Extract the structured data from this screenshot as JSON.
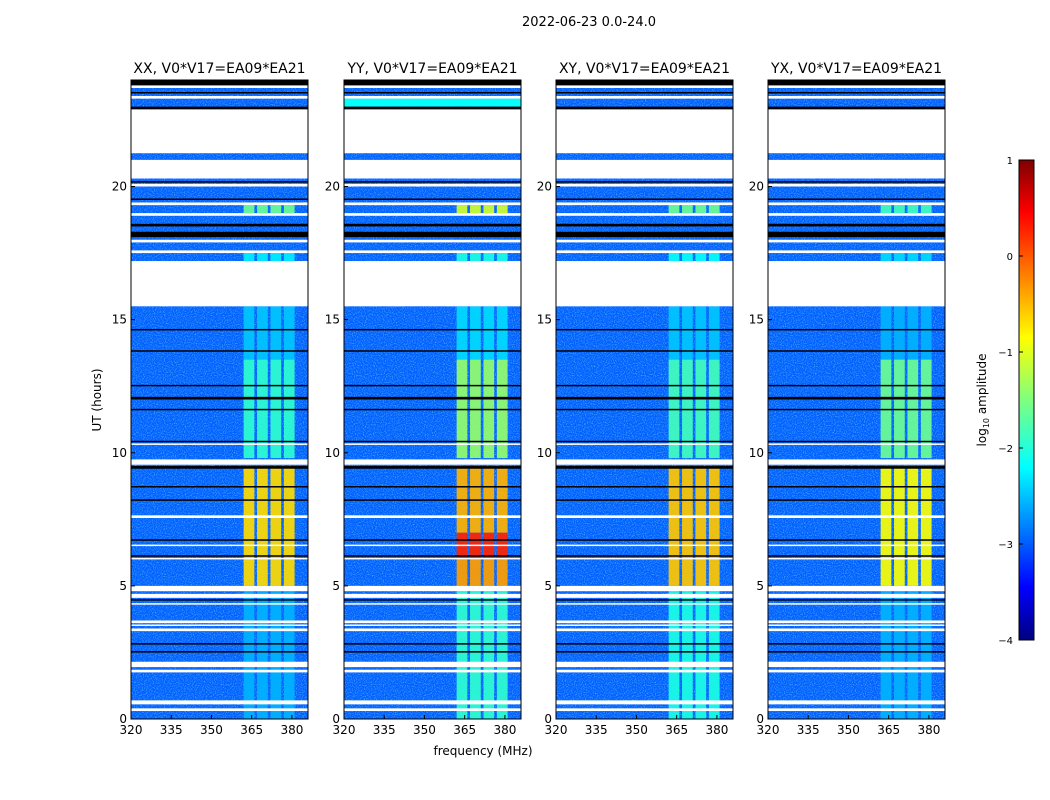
{
  "chart_data": {
    "type": "heatmap",
    "title": "2022-06-23 0.0-24.0",
    "xlabel": "frequency (MHz)",
    "ylabel": "UT (hours)",
    "xlim": [
      320,
      386
    ],
    "ylim": [
      0,
      24
    ],
    "xticks": [
      "320",
      "335",
      "350",
      "365",
      "380"
    ],
    "yticks": [
      "0",
      "5",
      "10",
      "15",
      "20"
    ],
    "colorbar": {
      "label_main": "log",
      "label_sub": "10",
      "label_rest": " amplitude",
      "range": [
        -4,
        1
      ],
      "ticks": [
        "1",
        "0",
        "−1",
        "−2",
        "−3",
        "−4"
      ],
      "colormap": "jet"
    },
    "background_level": -2.9,
    "flagged_hours": [
      [
        0.3,
        0.4
      ],
      [
        0.55,
        0.7
      ],
      [
        1.75,
        1.85
      ],
      [
        1.95,
        2.15
      ],
      [
        3.3,
        3.4
      ],
      [
        3.5,
        3.55
      ],
      [
        3.6,
        3.7
      ],
      [
        4.3,
        4.35
      ],
      [
        4.55,
        4.7
      ],
      [
        4.8,
        5.0
      ],
      [
        6.0,
        6.05
      ],
      [
        6.5,
        6.55
      ],
      [
        7.55,
        7.65
      ],
      [
        9.55,
        9.75
      ],
      [
        10.3,
        10.35
      ],
      [
        15.5,
        17.2
      ],
      [
        17.5,
        17.6
      ],
      [
        17.9,
        18.0
      ],
      [
        18.9,
        19.0
      ],
      [
        19.3,
        19.4
      ],
      [
        20.0,
        20.1
      ],
      [
        20.3,
        21.0
      ],
      [
        21.25,
        22.9
      ],
      [
        23.3,
        23.4
      ],
      [
        23.7,
        23.8
      ]
    ],
    "blank_hours": [
      [
        2.5,
        2.55
      ],
      [
        2.8,
        2.85
      ],
      [
        4.45,
        4.5
      ],
      [
        6.1,
        6.15
      ],
      [
        6.7,
        6.75
      ],
      [
        8.2,
        8.25
      ],
      [
        8.7,
        8.75
      ],
      [
        9.4,
        9.5
      ],
      [
        10.4,
        10.45
      ],
      [
        11.6,
        11.65
      ],
      [
        12.0,
        12.1
      ],
      [
        12.5,
        12.55
      ],
      [
        13.8,
        13.85
      ],
      [
        14.6,
        14.65
      ],
      [
        18.1,
        18.3
      ],
      [
        18.5,
        18.6
      ],
      [
        19.5,
        19.55
      ],
      [
        20.15,
        20.2
      ],
      [
        22.9,
        23.0
      ],
      [
        23.5,
        23.55
      ],
      [
        23.8,
        24.0
      ]
    ],
    "rfi_channels_mhz": [
      [
        362,
        366
      ],
      [
        367,
        371
      ],
      [
        372,
        376
      ],
      [
        377,
        381
      ]
    ],
    "panels": [
      {
        "title": "XX, V0*V17=EA09*EA21",
        "rfi": [
          {
            "hours": [
              0,
              4.8
            ],
            "level": -2.5
          },
          {
            "hours": [
              5,
              9.5
            ],
            "level": -0.7
          },
          {
            "hours": [
              9.8,
              13.5
            ],
            "level": -1.9
          },
          {
            "hours": [
              13.5,
              15.5
            ],
            "level": -2.4
          },
          {
            "hours": [
              17.2,
              17.5
            ],
            "level": -2.2
          },
          {
            "hours": [
              19,
              19.3
            ],
            "level": -1.6
          }
        ],
        "broadband": []
      },
      {
        "title": "YY, V0*V17=EA09*EA21",
        "rfi": [
          {
            "hours": [
              0,
              4.8
            ],
            "level": -1.9
          },
          {
            "hours": [
              5,
              6
            ],
            "level": -0.4
          },
          {
            "hours": [
              6,
              7
            ],
            "level": 0.2
          },
          {
            "hours": [
              7,
              9.5
            ],
            "level": -0.5
          },
          {
            "hours": [
              9.8,
              13.5
            ],
            "level": -1.4
          },
          {
            "hours": [
              13.5,
              15.5
            ],
            "level": -2.3
          },
          {
            "hours": [
              17.2,
              17.5
            ],
            "level": -2.0
          },
          {
            "hours": [
              19,
              19.3
            ],
            "level": -1.1
          }
        ],
        "broadband": [
          {
            "hours": [
              23.0,
              23.3
            ],
            "level": -2.1
          }
        ]
      },
      {
        "title": "XY, V0*V17=EA09*EA21",
        "rfi": [
          {
            "hours": [
              0,
              4.8
            ],
            "level": -2.0
          },
          {
            "hours": [
              5,
              9.5
            ],
            "level": -0.6
          },
          {
            "hours": [
              9.8,
              13.5
            ],
            "level": -1.8
          },
          {
            "hours": [
              13.5,
              15.5
            ],
            "level": -2.4
          },
          {
            "hours": [
              17.2,
              17.5
            ],
            "level": -2.1
          },
          {
            "hours": [
              19,
              19.3
            ],
            "level": -1.6
          }
        ],
        "broadband": []
      },
      {
        "title": "YX, V0*V17=EA09*EA21",
        "rfi": [
          {
            "hours": [
              0,
              4.8
            ],
            "level": -2.5
          },
          {
            "hours": [
              5,
              9.5
            ],
            "level": -0.9
          },
          {
            "hours": [
              9.8,
              13.5
            ],
            "level": -1.6
          },
          {
            "hours": [
              13.5,
              15.5
            ],
            "level": -2.5
          },
          {
            "hours": [
              17.2,
              17.5
            ],
            "level": -2.3
          },
          {
            "hours": [
              19,
              19.3
            ],
            "level": -1.8
          }
        ],
        "broadband": []
      }
    ]
  }
}
